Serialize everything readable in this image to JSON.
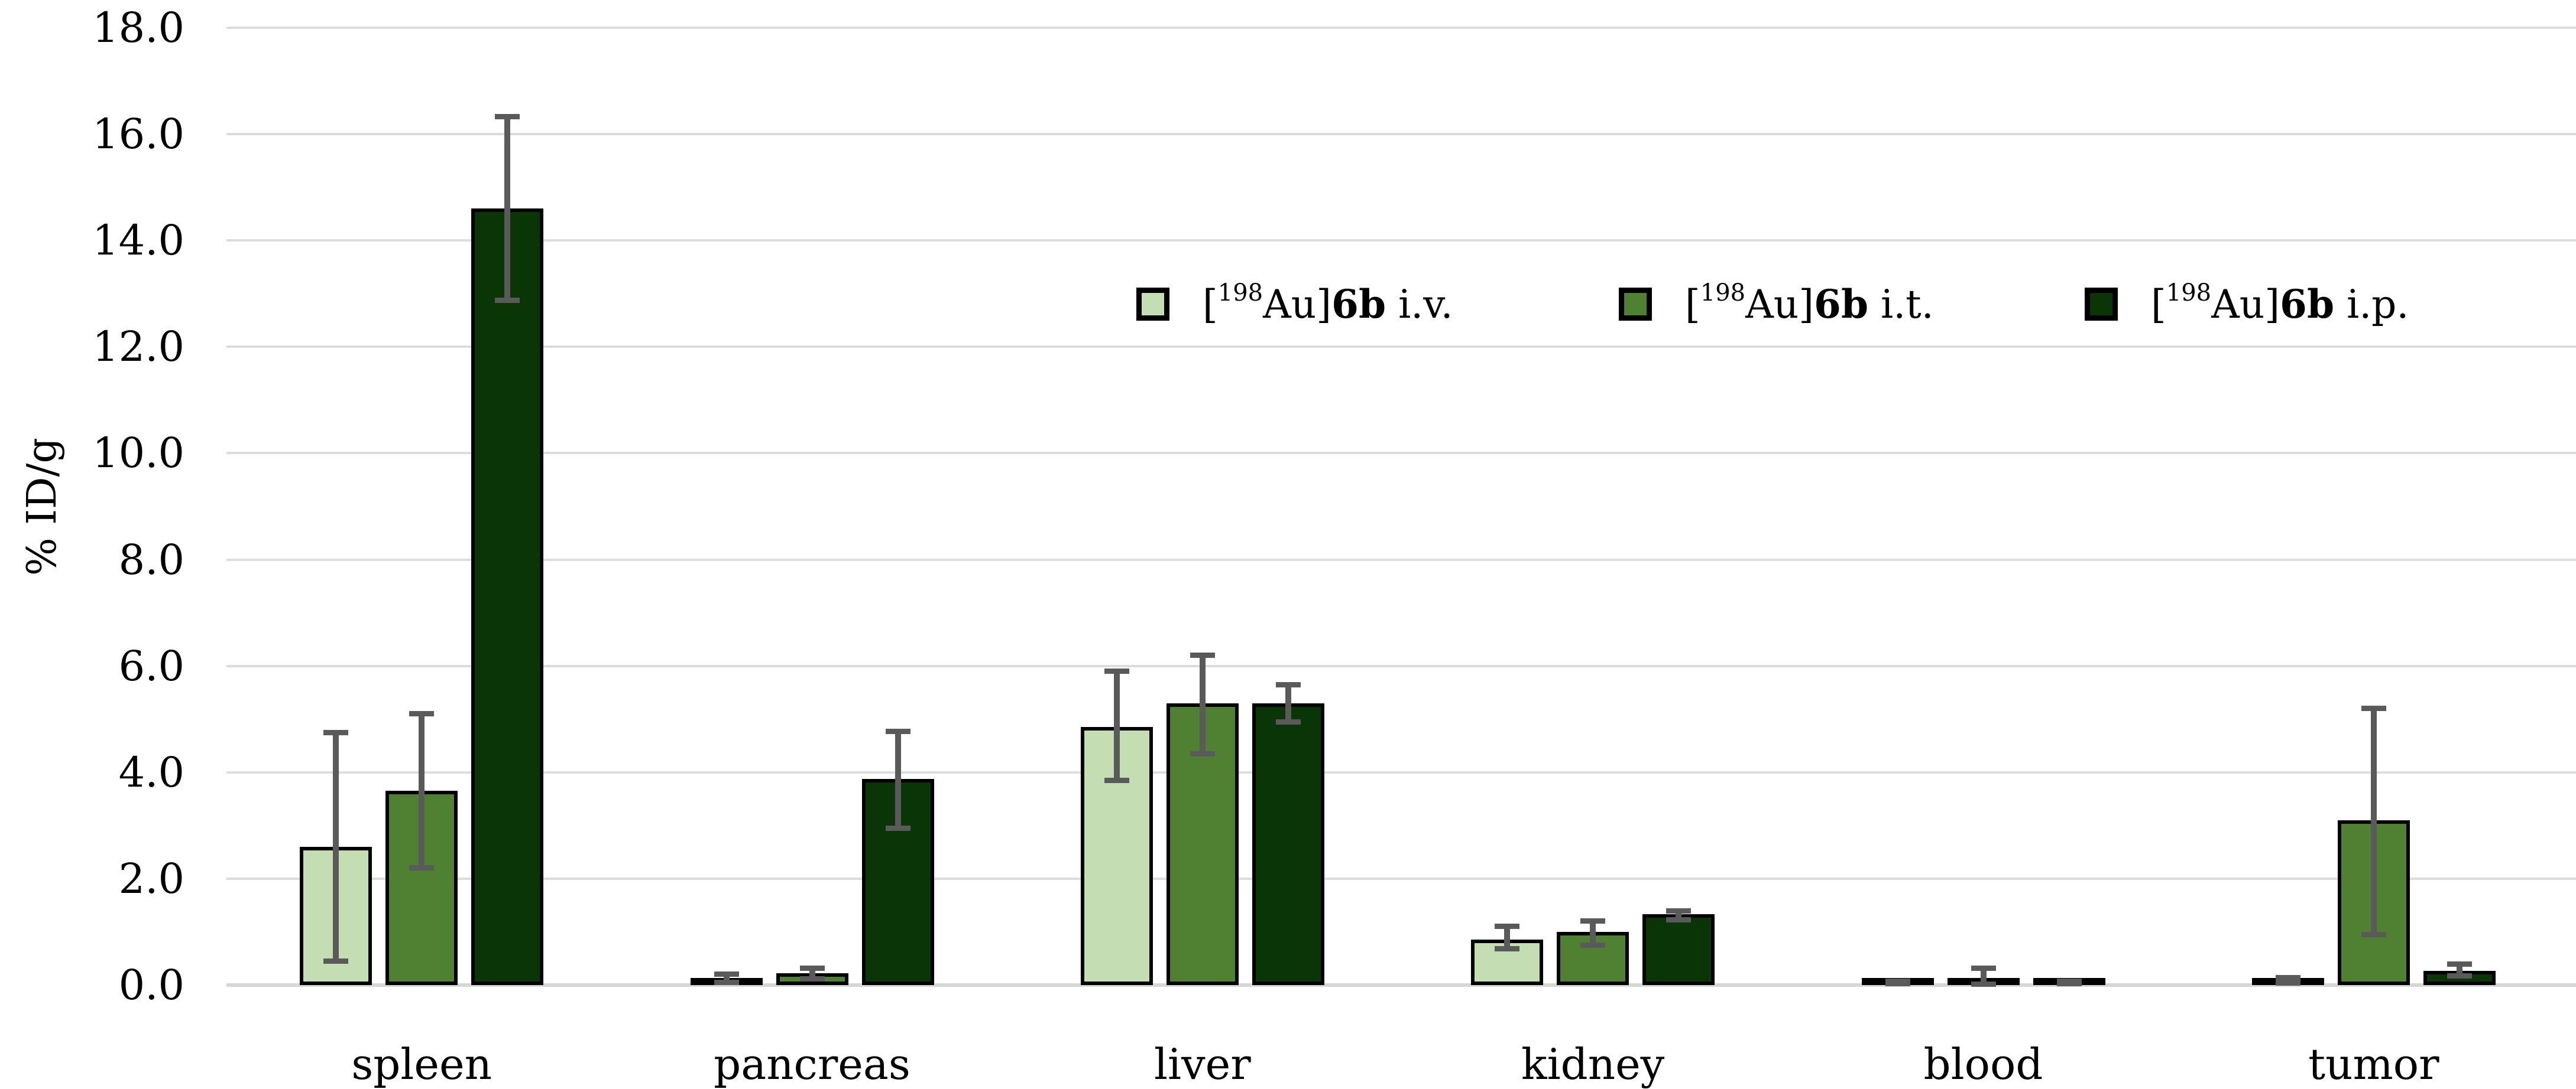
{
  "chart_data": {
    "type": "bar",
    "title": "",
    "ylabel": "% ID/g",
    "ylim": [
      0,
      18
    ],
    "ytick_step": 2.0,
    "ytick_labels": [
      "0.0",
      "2.0",
      "4.0",
      "6.0",
      "8.0",
      "10.0",
      "12.0",
      "14.0",
      "16.0",
      "18.0"
    ],
    "grid": true,
    "legend_position": "upper-right-inside",
    "categories": [
      "spleen",
      "pancreas",
      "liver",
      "kidney",
      "blood",
      "tumor"
    ],
    "series": [
      {
        "name": "[198Au]6b i.v.",
        "label_parts": {
          "open": "[",
          "isotope": "198",
          "close": "Au]",
          "compound": "6b",
          "route": "i.v."
        },
        "color": "#c5ddb2",
        "values": [
          2.6,
          0.13,
          4.85,
          0.85,
          0.05,
          0.09
        ],
        "err_plus": [
          2.15,
          0.08,
          1.05,
          0.25,
          0.02,
          0.05
        ],
        "err_minus": [
          2.15,
          0.08,
          1.0,
          0.17,
          0.02,
          0.05
        ]
      },
      {
        "name": "[198Au]6b i.t.",
        "label_parts": {
          "open": "[",
          "isotope": "198",
          "close": "Au]",
          "compound": "6b",
          "route": "i.t."
        },
        "color": "#508031",
        "values": [
          3.65,
          0.22,
          5.3,
          1.0,
          0.12,
          3.1
        ],
        "err_plus": [
          1.45,
          0.1,
          0.9,
          0.2,
          0.2,
          2.1
        ],
        "err_minus": [
          1.45,
          0.1,
          0.95,
          0.25,
          0.1,
          2.15
        ]
      },
      {
        "name": "[198Au]6b i.p.",
        "label_parts": {
          "open": "[",
          "isotope": "198",
          "close": "Au]",
          "compound": "6b",
          "route": "i.p."
        },
        "color": "#0a3607",
        "values": [
          14.6,
          3.87,
          5.3,
          1.33,
          0.05,
          0.27
        ],
        "err_plus": [
          1.73,
          0.9,
          0.35,
          0.06,
          0.02,
          0.12
        ],
        "err_minus": [
          1.73,
          0.92,
          0.35,
          0.1,
          0.02,
          0.1
        ]
      }
    ],
    "bar_border_color": "#000000",
    "error_bar_color": "#5a5a5a",
    "gridline_color": "#dcdcdc",
    "axis_line_color": "#d6d6d6"
  }
}
